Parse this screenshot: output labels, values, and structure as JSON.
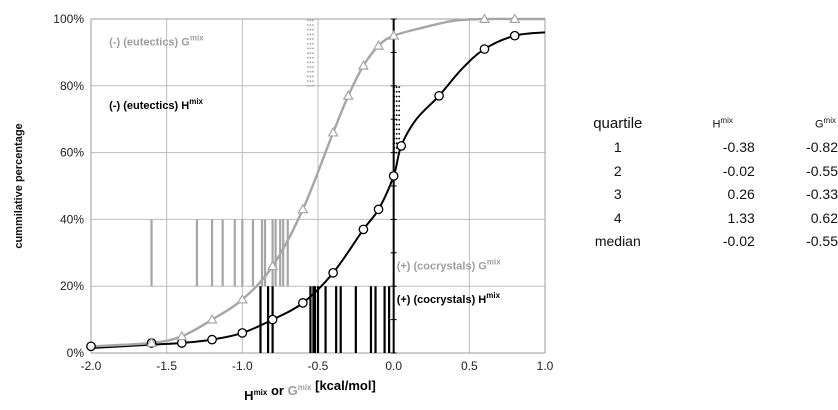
{
  "chart_data": {
    "type": "line",
    "xlabel_parts": [
      {
        "text": "H",
        "color": "#000000",
        "sup": false
      },
      {
        "text": "mix",
        "color": "#000000",
        "sup": true
      },
      {
        "text": " or ",
        "color": "#000000",
        "sup": false
      },
      {
        "text": "G",
        "color": "#9e9e9e",
        "sup": false
      },
      {
        "text": "mix",
        "color": "#9e9e9e",
        "sup": true
      },
      {
        "text": "  [kcal/mol]",
        "color": "#000000",
        "sup": false
      }
    ],
    "ylabel": "cummilative percentage",
    "xlim": [
      -2.0,
      1.0
    ],
    "ylim": [
      0,
      100
    ],
    "xticks": [
      "-2.0",
      "-1.5",
      "-1.0",
      "-0.5",
      "0.0",
      "0.5",
      "1.0"
    ],
    "yticks": [
      "0%",
      "20%",
      "40%",
      "60%",
      "80%",
      "100%"
    ],
    "grid": true,
    "series": [
      {
        "id": "H",
        "color": "#000000",
        "marker": "circle",
        "x": [
          -2.0,
          -1.6,
          -1.4,
          -1.2,
          -1.0,
          -0.8,
          -0.6,
          -0.4,
          -0.2,
          -0.1,
          0.0,
          0.05,
          0.3,
          0.6,
          0.8
        ],
        "y": [
          2,
          3,
          3,
          4,
          6,
          10,
          15,
          24,
          37,
          43,
          53,
          62,
          77,
          91,
          95
        ],
        "curve_x": [
          -2.0,
          -1.6,
          -1.4,
          -1.2,
          -1.0,
          -0.8,
          -0.6,
          -0.4,
          -0.2,
          -0.1,
          0.0,
          0.05,
          0.15,
          0.3,
          0.45,
          0.6,
          0.8,
          1.0
        ],
        "curve_y": [
          1.5,
          2.5,
          3,
          4,
          6,
          10,
          15,
          24,
          37,
          43,
          53,
          62,
          70,
          77,
          85,
          91,
          95,
          96
        ]
      },
      {
        "id": "G",
        "color": "#a6a6a6",
        "marker": "triangle",
        "x": [
          -1.6,
          -1.4,
          -1.2,
          -1.0,
          -0.8,
          -0.6,
          -0.4,
          -0.3,
          -0.2,
          -0.1,
          0.0,
          0.6,
          0.8
        ],
        "y": [
          3,
          5,
          10,
          16,
          26,
          43,
          66,
          77,
          86,
          92,
          95,
          100,
          100
        ],
        "curve_x": [
          -2.0,
          -1.6,
          -1.4,
          -1.2,
          -1.0,
          -0.8,
          -0.6,
          -0.4,
          -0.3,
          -0.2,
          -0.1,
          0.0,
          0.2,
          0.4,
          0.6,
          0.8,
          1.0
        ],
        "curve_y": [
          2,
          3,
          5,
          10,
          16,
          26,
          43,
          66,
          77,
          86,
          92,
          95,
          97.5,
          99.5,
          100,
          100,
          100
        ]
      }
    ],
    "eutectic_G_ticks": [
      -1.6,
      -1.3,
      -1.2,
      -1.13,
      -1.05,
      -1.0,
      -0.93,
      -0.87,
      -0.85,
      -0.8,
      -0.78,
      -0.75,
      -0.73,
      -0.7
    ],
    "cocrystal_H_ticks": [
      -0.88,
      -0.83,
      -0.8,
      -0.55,
      -0.53,
      -0.52,
      -0.5,
      -0.45,
      -0.38,
      -0.35,
      -0.25,
      -0.15,
      -0.12,
      -0.06,
      -0.03
    ],
    "dotted_G": {
      "x": -0.55,
      "y_range": [
        80,
        100
      ]
    },
    "dotted_H": {
      "x": 0.02,
      "y_range": [
        60,
        80
      ]
    },
    "annotations": [
      {
        "parts": [
          {
            "text": "(-) (eutectics) G",
            "sup": false
          },
          {
            "text": "mix",
            "sup": true
          }
        ],
        "color": "#9e9e9e",
        "at": [
          -1.88,
          92
        ]
      },
      {
        "parts": [
          {
            "text": "(-) (eutectics) H",
            "sup": false
          },
          {
            "text": "mix",
            "sup": true
          }
        ],
        "color": "#000000",
        "at": [
          -1.88,
          73
        ]
      },
      {
        "parts": [
          {
            "text": "(+) (cocrystals) G",
            "sup": false
          },
          {
            "text": "mix",
            "sup": true
          }
        ],
        "color": "#9e9e9e",
        "at": [
          0.02,
          25
        ]
      },
      {
        "parts": [
          {
            "text": "(+) (cocrystals) H",
            "sup": false
          },
          {
            "text": "mix",
            "sup": true
          }
        ],
        "color": "#000000",
        "at": [
          0.02,
          15
        ]
      }
    ]
  },
  "quartile_table": {
    "header": {
      "c0": "quartile",
      "c1_base": "H",
      "c2_base": "G",
      "sup": "mix"
    },
    "rows": [
      {
        "label": "1",
        "h": "-0.38",
        "g": "-0.82"
      },
      {
        "label": "2",
        "h": "-0.02",
        "g": "-0.55"
      },
      {
        "label": "3",
        "h": "0.26",
        "g": "-0.33"
      },
      {
        "label": "4",
        "h": "1.33",
        "g": "0.62"
      },
      {
        "label": "median",
        "h": "-0.02",
        "g": "-0.55"
      }
    ]
  }
}
